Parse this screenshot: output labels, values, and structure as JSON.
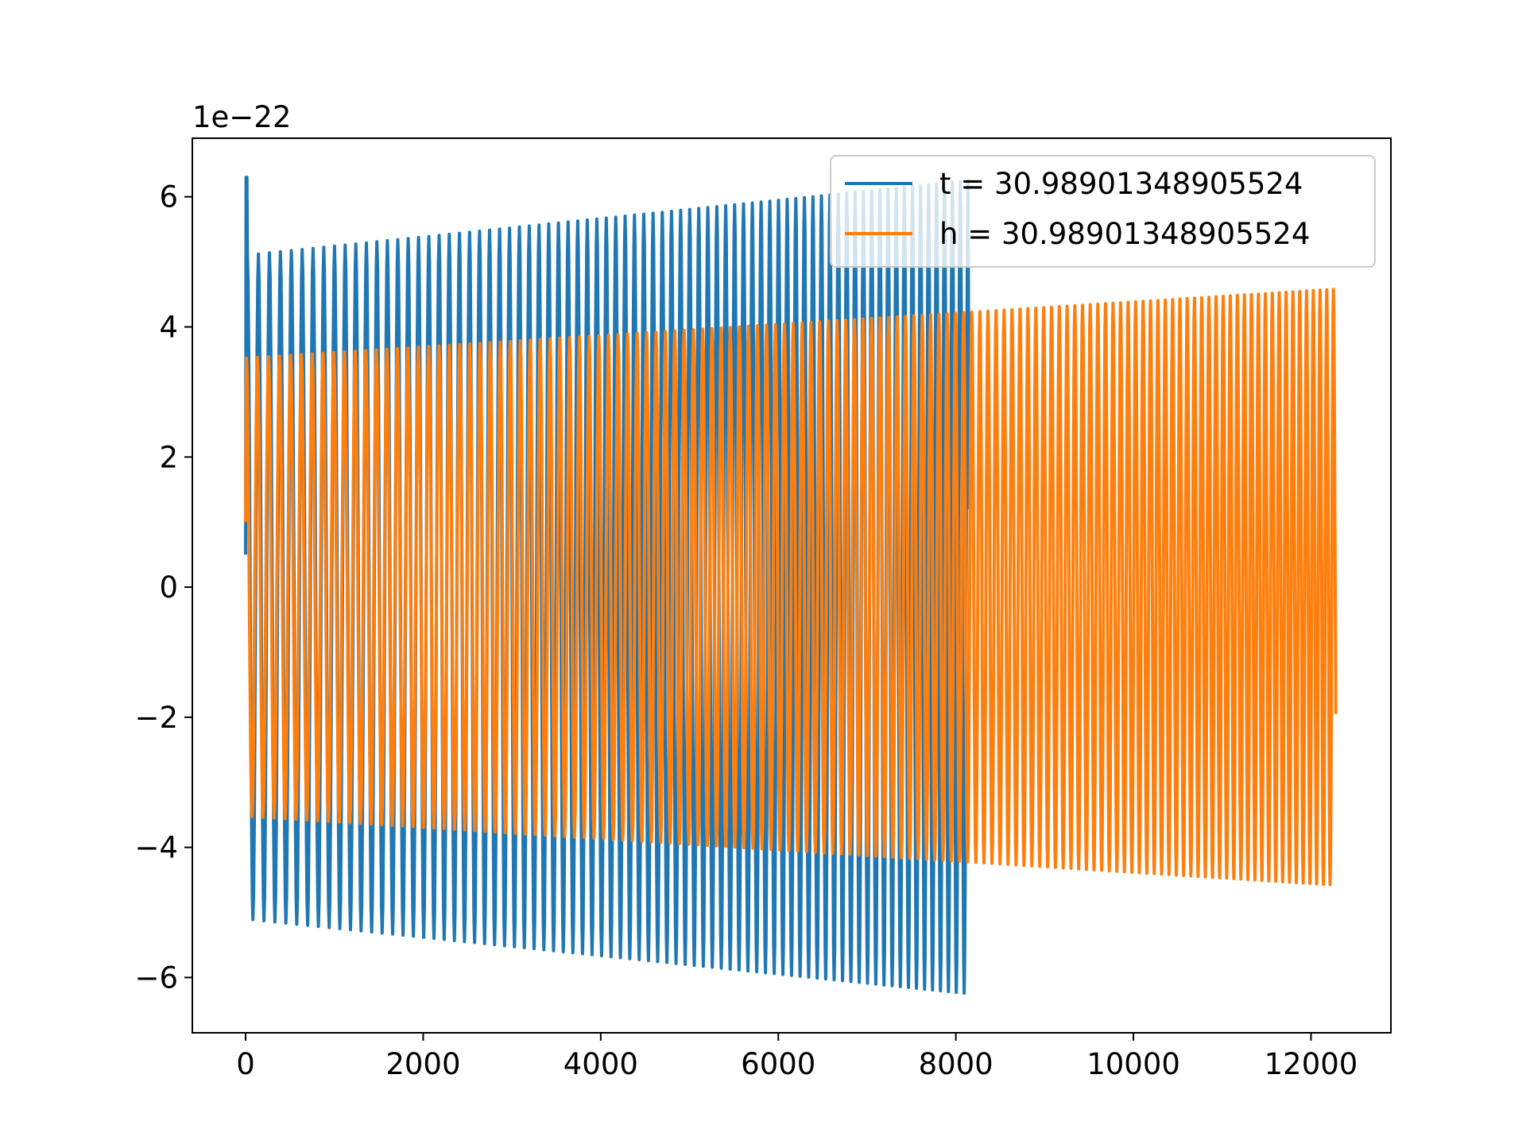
{
  "chart_data": {
    "type": "line",
    "title": "",
    "xlabel": "",
    "ylabel": "",
    "offset_label": "1e−22",
    "xlim": [
      -600,
      12900
    ],
    "ylim": [
      -6.85,
      6.9
    ],
    "xticks": [
      0,
      2000,
      4000,
      6000,
      8000,
      10000,
      12000
    ],
    "xtick_labels": [
      "0",
      "2000",
      "4000",
      "6000",
      "8000",
      "10000",
      "12000"
    ],
    "yticks": [
      -6,
      -4,
      -2,
      0,
      2,
      4,
      6
    ],
    "ytick_labels": [
      "−6",
      "−4",
      "−2",
      "0",
      "2",
      "4",
      "6"
    ],
    "grid": false,
    "legend_position": "top-right",
    "series": [
      {
        "name": "t = 30.98901348905524",
        "color": "#1f77b4",
        "x_start": 0,
        "x_end": 8150,
        "start_value": 0.5,
        "spike_peak": 6.3,
        "amplitude_start": 5.1,
        "amplitude_end": 6.25,
        "period_start": 125,
        "period_end": 88,
        "end_value": 1.2
      },
      {
        "name": "h = 30.98901348905524",
        "color": "#ff7f0e",
        "x_start": 0,
        "x_end": 12280,
        "start_value": 1.0,
        "amplitude_start": 3.52,
        "amplitude_end": 4.58,
        "period_start": 125,
        "period_end": 75,
        "end_value": -1.95
      }
    ]
  }
}
